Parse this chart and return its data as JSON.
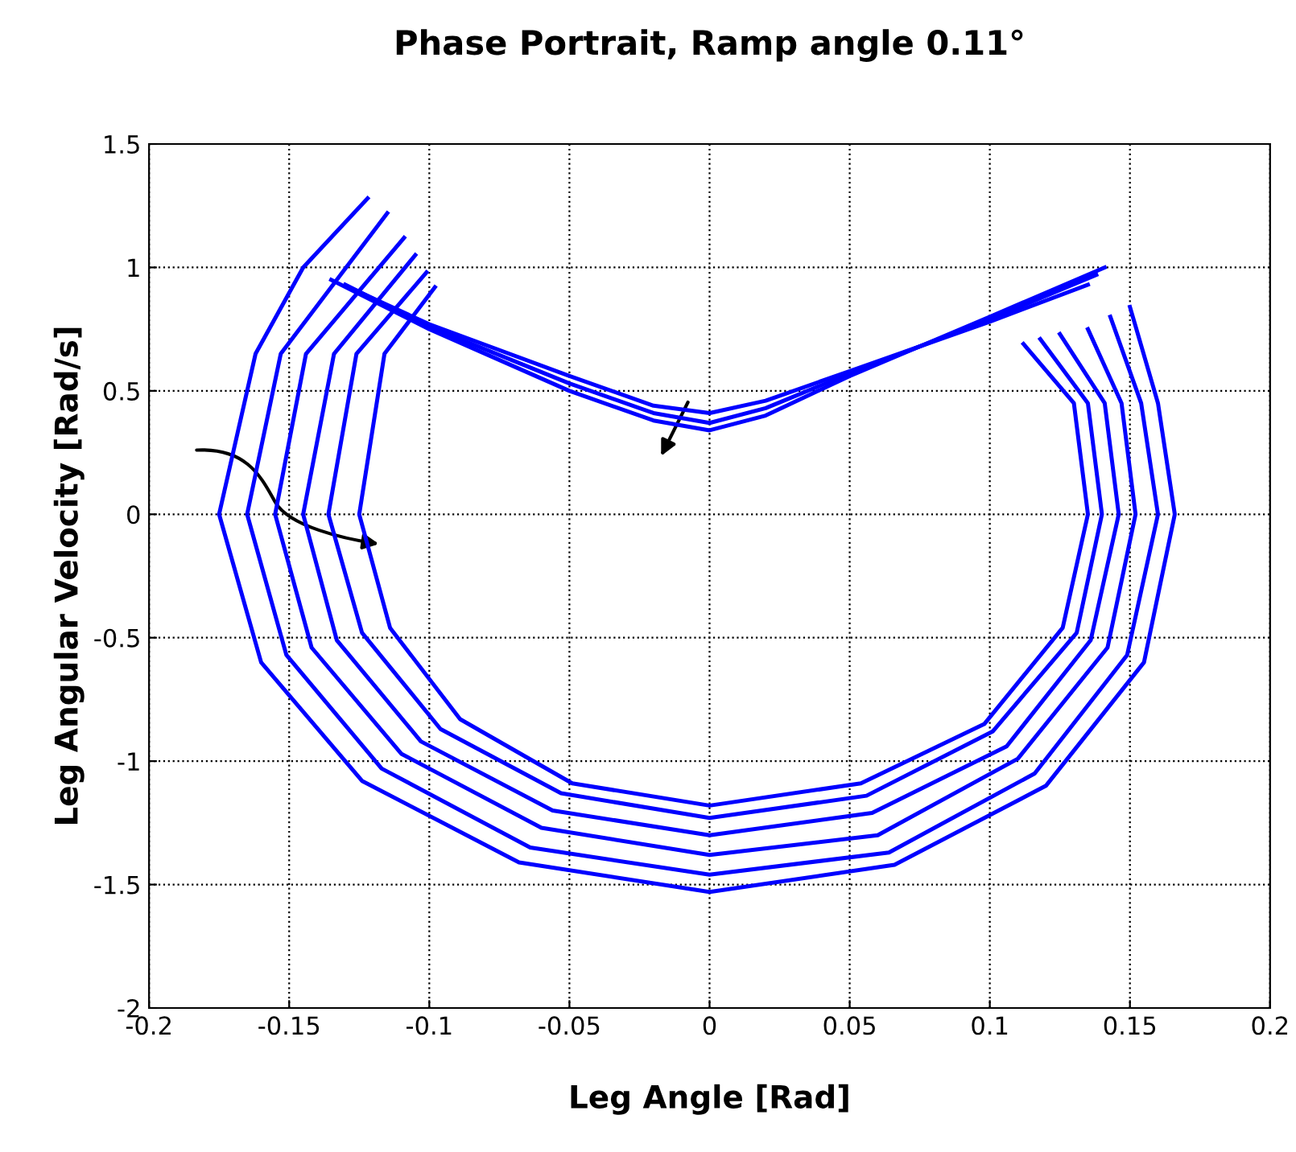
{
  "chart_data": {
    "type": "line",
    "title": "Phase Portrait, Ramp angle 0.11°",
    "xlabel": "Leg Angle [Rad]",
    "ylabel": "Leg Angular Velocity [Rad/s]",
    "xlim": [
      -0.2,
      0.2
    ],
    "ylim": [
      -2,
      1.5
    ],
    "xticks": [
      {
        "value": -0.2,
        "label": "-0.2"
      },
      {
        "value": -0.15,
        "label": "-0.15"
      },
      {
        "value": -0.1,
        "label": "-0.1"
      },
      {
        "value": -0.05,
        "label": "-0.05"
      },
      0,
      0.05,
      0.1,
      0.15,
      0.2
    ],
    "yticks": [
      {
        "value": -2,
        "label": "-2"
      },
      {
        "value": -1.5,
        "label": "-1.5"
      },
      {
        "value": -1,
        "label": "-1"
      },
      {
        "value": -0.5,
        "label": "-0.5"
      },
      0,
      0.5,
      1,
      1.5
    ],
    "grid": true,
    "legend": false,
    "marker": "none",
    "line_style": "solid",
    "series": [
      {
        "color": "#0000ff",
        "x": [
          -0.122,
          -0.145,
          -0.162,
          -0.175,
          -0.16,
          -0.124,
          -0.068,
          0,
          0.066,
          0.12,
          0.155,
          0.166,
          0.16,
          0.15
        ],
        "values": [
          1.28,
          1.0,
          0.65,
          0,
          -0.6,
          -1.08,
          -1.41,
          -1.53,
          -1.42,
          -1.1,
          -0.6,
          0,
          0.45,
          0.84
        ]
      },
      {
        "color": "#0000ff",
        "x": [
          -0.115,
          -0.153,
          -0.165,
          -0.151,
          -0.117,
          -0.064,
          0,
          0.064,
          0.116,
          0.149,
          0.16,
          0.154,
          0.143
        ],
        "values": [
          1.22,
          0.65,
          0,
          -0.57,
          -1.03,
          -1.35,
          -1.46,
          -1.37,
          -1.05,
          -0.57,
          0,
          0.45,
          0.8
        ]
      },
      {
        "color": "#0000ff",
        "x": [
          -0.109,
          -0.144,
          -0.155,
          -0.142,
          -0.11,
          -0.06,
          0,
          0.06,
          0.11,
          0.142,
          0.152,
          0.147,
          0.135
        ],
        "values": [
          1.12,
          0.65,
          0,
          -0.54,
          -0.97,
          -1.27,
          -1.38,
          -1.3,
          -0.99,
          -0.54,
          0,
          0.45,
          0.75
        ]
      },
      {
        "color": "#0000ff",
        "x": [
          -0.105,
          -0.134,
          -0.145,
          -0.133,
          -0.103,
          -0.056,
          0,
          0.058,
          0.106,
          0.136,
          0.146,
          0.141,
          0.125
        ],
        "values": [
          1.05,
          0.65,
          0,
          -0.51,
          -0.92,
          -1.2,
          -1.3,
          -1.21,
          -0.94,
          -0.51,
          0,
          0.45,
          0.73
        ]
      },
      {
        "color": "#0000ff",
        "x": [
          -0.101,
          -0.126,
          -0.136,
          -0.124,
          -0.096,
          -0.053,
          0,
          0.056,
          0.101,
          0.131,
          0.14,
          0.135,
          0.118
        ],
        "values": [
          0.98,
          0.65,
          0,
          -0.48,
          -0.87,
          -1.13,
          -1.23,
          -1.14,
          -0.88,
          -0.48,
          0,
          0.45,
          0.71
        ]
      },
      {
        "color": "#0000ff",
        "x": [
          -0.098,
          -0.116,
          -0.125,
          -0.114,
          -0.089,
          -0.049,
          0,
          0.054,
          0.098,
          0.126,
          0.135,
          0.13,
          0.112
        ],
        "values": [
          0.92,
          0.65,
          0,
          -0.46,
          -0.83,
          -1.09,
          -1.18,
          -1.09,
          -0.85,
          -0.46,
          0,
          0.45,
          0.69
        ]
      },
      {
        "color": "#0000ff",
        "x": [
          0.141,
          0.1,
          0.05,
          0.02,
          0,
          -0.02,
          -0.05,
          -0.1,
          -0.135
        ],
        "values": [
          1.0,
          0.8,
          0.56,
          0.4,
          0.34,
          0.38,
          0.5,
          0.75,
          0.95
        ]
      },
      {
        "color": "#0000ff",
        "x": [
          0.138,
          0.1,
          0.05,
          0.02,
          0,
          -0.02,
          -0.05,
          -0.1,
          -0.13
        ],
        "values": [
          0.97,
          0.79,
          0.57,
          0.43,
          0.37,
          0.41,
          0.53,
          0.76,
          0.93
        ]
      },
      {
        "color": "#0000ff",
        "x": [
          0.135,
          0.1,
          0.05,
          0.02,
          0,
          -0.02,
          -0.05,
          -0.1,
          -0.125
        ],
        "values": [
          0.93,
          0.78,
          0.58,
          0.46,
          0.41,
          0.44,
          0.56,
          0.77,
          0.9
        ]
      }
    ]
  }
}
